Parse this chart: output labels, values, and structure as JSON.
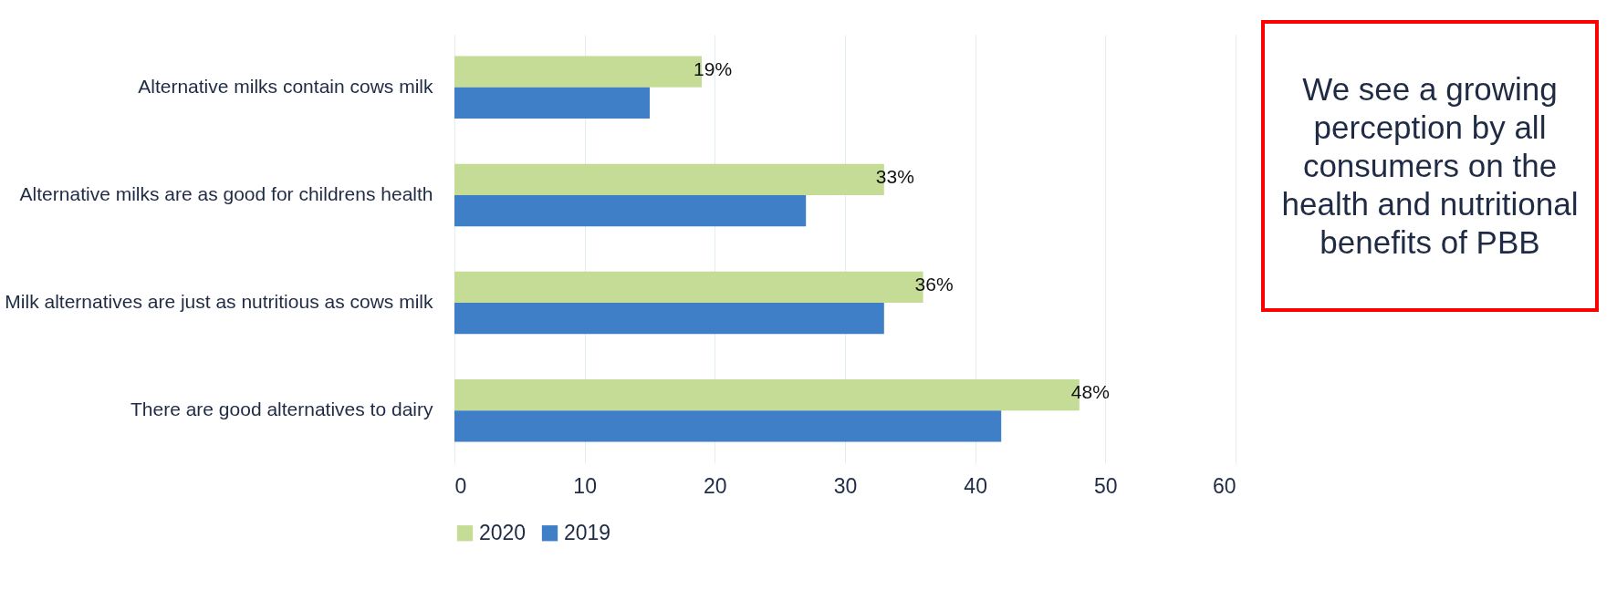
{
  "chart_data": {
    "type": "bar",
    "orientation": "horizontal",
    "categories": [
      "Alternative milks contain cows milk",
      "Alternative milks are as good for childrens health",
      "Milk alternatives are just as nutritious as cows milk",
      "There are good alternatives to dairy"
    ],
    "series": [
      {
        "name": "2020",
        "color": "#c4dc96",
        "values": [
          19,
          33,
          36,
          48
        ],
        "value_labels": [
          "19%",
          "33%",
          "36%",
          "48%"
        ]
      },
      {
        "name": "2019",
        "color": "#3f7fc8",
        "values": [
          15,
          27,
          33,
          42
        ]
      }
    ],
    "xlim": [
      0,
      60
    ],
    "xticks": [
      0,
      10,
      20,
      30,
      40,
      50,
      60
    ],
    "grid": "x",
    "legend": "bottom",
    "annotations": [
      "We see a growing perception by all consumers on the health and nutritional benefits of PBB"
    ]
  }
}
